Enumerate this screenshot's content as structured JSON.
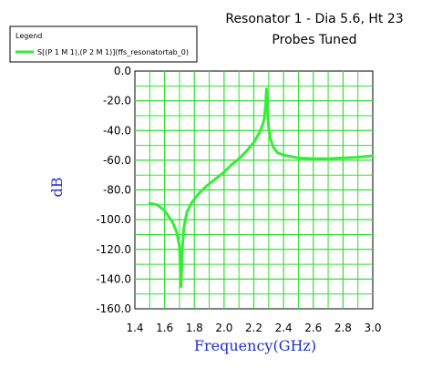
{
  "chart_data": {
    "type": "line",
    "title_line1": "Resonator 1 - Dia 5.6, Ht 23",
    "title_line2": "Probes Tuned",
    "xlabel": "Frequency(GHz)",
    "ylabel": "dB",
    "xlim": [
      1.4,
      3.0
    ],
    "ylim": [
      -160.0,
      0.0
    ],
    "x_ticks": [
      "1.4",
      "1.6",
      "1.8",
      "2.0",
      "2.2",
      "2.4",
      "2.6",
      "2.8",
      "3.0"
    ],
    "y_ticks": [
      "0.0",
      "-20.0",
      "-40.0",
      "-60.0",
      "-80.0",
      "-100.0",
      "-120.0",
      "-140.0",
      "-160.0"
    ],
    "grid": true,
    "legend_title": "Legend",
    "legend_placement": "top-left",
    "series": [
      {
        "name": "S[(P 1 M 1),(P 2 M 1)](ffs_resonatortab_0)",
        "color": "#33ee33",
        "x": [
          1.5,
          1.55,
          1.6,
          1.65,
          1.68,
          1.7,
          1.71,
          1.72,
          1.73,
          1.75,
          1.78,
          1.82,
          1.88,
          1.95,
          2.0,
          2.05,
          2.1,
          2.15,
          2.2,
          2.24,
          2.26,
          2.27,
          2.28,
          2.285,
          2.29,
          2.295,
          2.3,
          2.31,
          2.33,
          2.36,
          2.4,
          2.45,
          2.5,
          2.6,
          2.7,
          2.8,
          2.9,
          3.0
        ],
        "y": [
          -89.0,
          -90.0,
          -94.0,
          -101.0,
          -108.0,
          -118.0,
          -145.0,
          -118.0,
          -105.0,
          -95.0,
          -89.0,
          -83.5,
          -77.5,
          -72.0,
          -68.0,
          -63.0,
          -59.0,
          -54.0,
          -48.0,
          -41.0,
          -36.0,
          -32.0,
          -22.0,
          -12.0,
          -20.0,
          -32.0,
          -38.0,
          -45.0,
          -51.0,
          -55.0,
          -56.5,
          -57.5,
          -58.5,
          -59.0,
          -59.0,
          -58.5,
          -58.0,
          -57.0
        ]
      }
    ]
  }
}
